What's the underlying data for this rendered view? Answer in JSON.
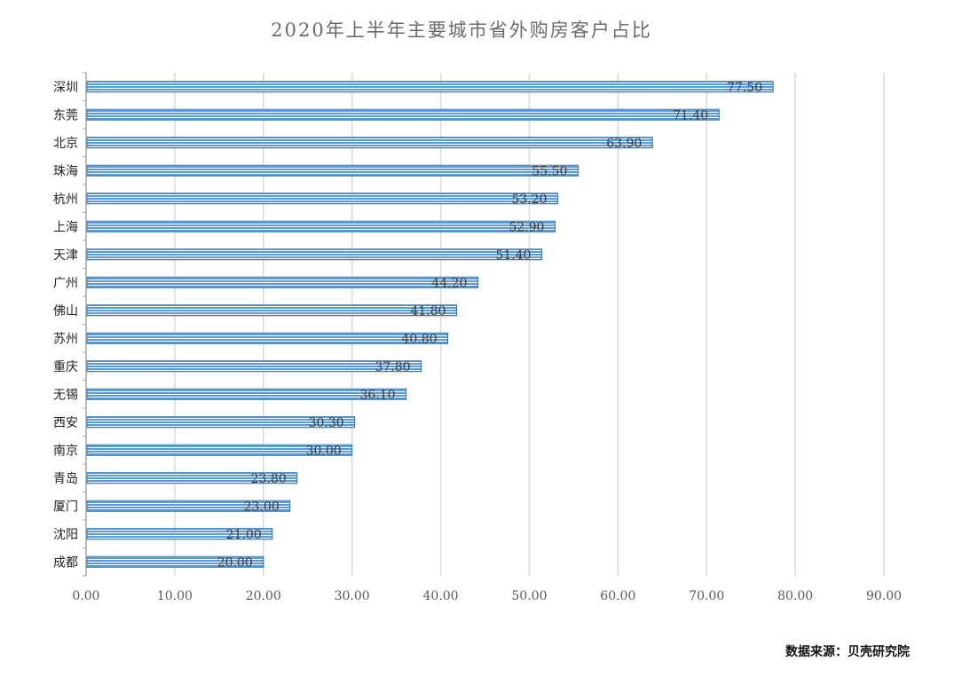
{
  "chart_data": {
    "type": "bar",
    "orientation": "horizontal",
    "title": "2020年上半年主要城市省外购房客户占比",
    "categories": [
      "深圳",
      "东莞",
      "北京",
      "珠海",
      "杭州",
      "上海",
      "天津",
      "广州",
      "佛山",
      "苏州",
      "重庆",
      "无锡",
      "西安",
      "南京",
      "青岛",
      "厦门",
      "沈阳",
      "成都"
    ],
    "values": [
      77.5,
      71.4,
      63.9,
      55.5,
      53.2,
      52.9,
      51.4,
      44.2,
      41.8,
      40.8,
      37.8,
      36.1,
      30.3,
      30.0,
      23.8,
      23.0,
      21.0,
      20.0
    ],
    "data_labels": [
      "77.50",
      "71.40",
      "63.90",
      "55.50",
      "53.20",
      "52.90",
      "51.40",
      "44.20",
      "41.80",
      "40.80",
      "37.80",
      "36.10",
      "30.30",
      "30.00",
      "23.80",
      "23.00",
      "21.00",
      "20.00"
    ],
    "x_ticks": [
      "0.00",
      "10.00",
      "20.00",
      "30.00",
      "40.00",
      "50.00",
      "60.00",
      "70.00",
      "80.00",
      "90.00"
    ],
    "xlim": [
      0,
      90
    ],
    "xlabel": "",
    "ylabel": "",
    "grid": true,
    "legend": "none",
    "bar_color": "#5b9bd5",
    "bar_stripe_color": "#ffffff",
    "gridline_color": "#d9d9d9"
  },
  "source_note": "数据来源：贝壳研究院"
}
